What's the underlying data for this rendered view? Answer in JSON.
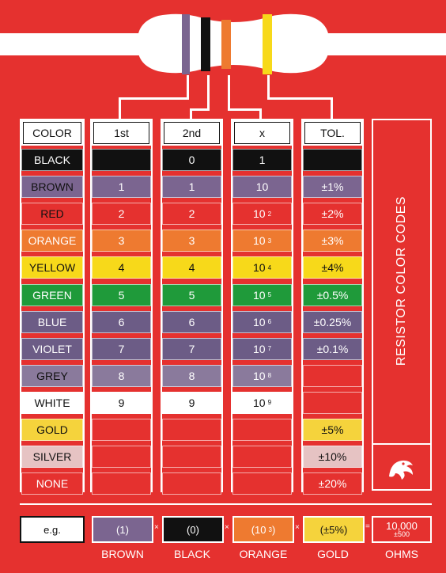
{
  "headers": [
    "COLOR",
    "1st",
    "2nd",
    "x",
    "TOL."
  ],
  "rows": [
    {
      "name": "BLACK",
      "bg": "#111111",
      "fg": "#ffffff",
      "first": "",
      "second": "0",
      "mult": "1",
      "mult_exp": "",
      "tol": "",
      "tol_bg": "#111111"
    },
    {
      "name": "BROWN",
      "bg": "#7b6590",
      "fg": "#111111",
      "first": "1",
      "second": "1",
      "mult": "10",
      "mult_exp": "",
      "tol": "±1%",
      "tol_bg": "#7b6590"
    },
    {
      "name": "RED",
      "bg": "#e5312f",
      "fg": "#111111",
      "first": "2",
      "second": "2",
      "mult": "10",
      "mult_exp": "2",
      "tol": "±2%",
      "tol_bg": "#e5312f"
    },
    {
      "name": "ORANGE",
      "bg": "#ee7a30",
      "fg": "#ffffff",
      "first": "3",
      "second": "3",
      "mult": "10",
      "mult_exp": "3",
      "tol": "±3%",
      "tol_bg": "#ee7a30"
    },
    {
      "name": "YELLOW",
      "bg": "#f7d91a",
      "fg": "#111111",
      "first": "4",
      "second": "4",
      "mult": "10",
      "mult_exp": "4",
      "tol": "±4%",
      "tol_bg": "#f7d91a"
    },
    {
      "name": "GREEN",
      "bg": "#1f9a3a",
      "fg": "#ffffff",
      "first": "5",
      "second": "5",
      "mult": "10",
      "mult_exp": "5",
      "tol": "±0.5%",
      "tol_bg": "#1f9a3a"
    },
    {
      "name": "BLUE",
      "bg": "#6c5c86",
      "fg": "#ffffff",
      "first": "6",
      "second": "6",
      "mult": "10",
      "mult_exp": "6",
      "tol": "±0.25%",
      "tol_bg": "#6c5c86"
    },
    {
      "name": "VIOLET",
      "bg": "#6c5c86",
      "fg": "#ffffff",
      "first": "7",
      "second": "7",
      "mult": "10",
      "mult_exp": "7",
      "tol": "±0.1%",
      "tol_bg": "#6c5c86"
    },
    {
      "name": "GREY",
      "bg": "#8a7a9c",
      "fg": "#111111",
      "first": "8",
      "second": "8",
      "mult": "10",
      "mult_exp": "8",
      "tol": "",
      "tol_bg": "#e5312f"
    },
    {
      "name": "WHITE",
      "bg": "#ffffff",
      "fg": "#111111",
      "first": "9",
      "second": "9",
      "mult": "10",
      "mult_exp": "9",
      "tol": "",
      "tol_bg": "#e5312f"
    },
    {
      "name": "GOLD",
      "bg": "#f5d33c",
      "fg": "#111111",
      "first": "",
      "second": "",
      "mult": "",
      "mult_exp": "",
      "tol": "±5%",
      "tol_bg": "#f5d33c"
    },
    {
      "name": "SILVER",
      "bg": "#e6c3c3",
      "fg": "#111111",
      "first": "",
      "second": "",
      "mult": "",
      "mult_exp": "",
      "tol": "±10%",
      "tol_bg": "#e6c3c3"
    },
    {
      "name": "NONE",
      "bg": "#e5312f",
      "fg": "#ffffff",
      "first": "",
      "second": "",
      "mult": "",
      "mult_exp": "",
      "tol": "±20%",
      "tol_bg": "#e5312f"
    }
  ],
  "title": "RESISTOR COLOR CODES",
  "example": {
    "label": "e.g.",
    "b1_value": "(1)",
    "b1_name": "BROWN",
    "b2_value": "(0)",
    "b2_name": "BLACK",
    "b3_value": "(10",
    "b3_exp": "3",
    "b3_close": ")",
    "b3_name": "ORANGE",
    "b4_value": "(±5%)",
    "b4_name": "GOLD",
    "op_times": "×",
    "op_equals": "=",
    "result_value": "10,000",
    "result_tol": "±500",
    "result_name": "OHMS"
  },
  "colors": {
    "brand_red": "#e5312f",
    "white": "#ffffff"
  },
  "icons": [
    "resistor-icon",
    "logo-icon"
  ]
}
